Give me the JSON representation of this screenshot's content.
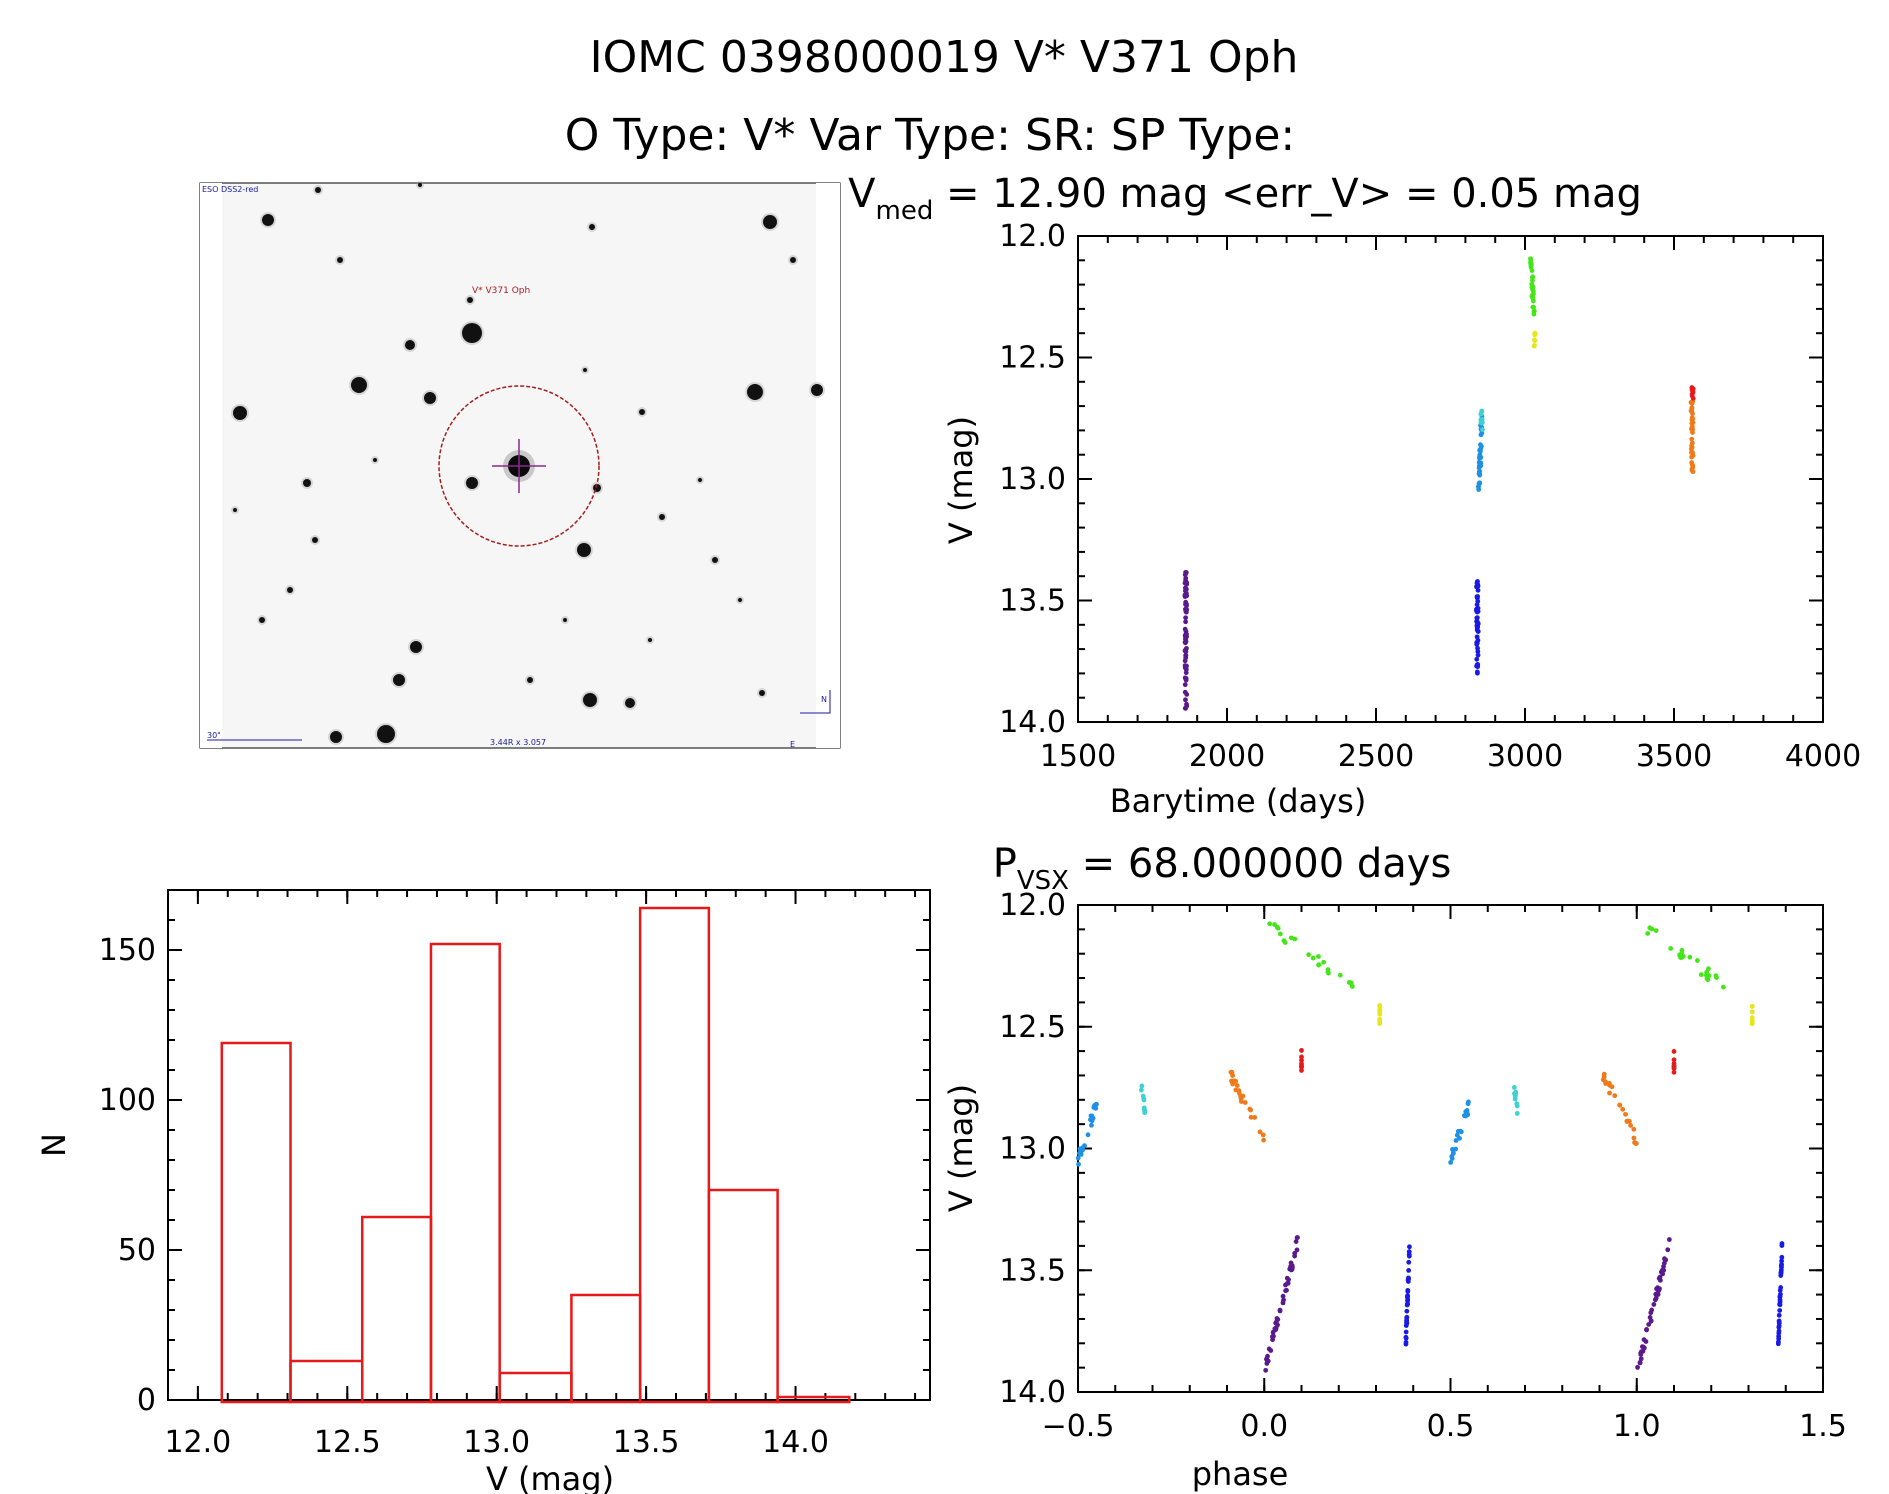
{
  "header": {
    "title": "IOMC 0398000019   V* V371 Oph",
    "subtitle": "O Type: V*  Var Type: SR:  SP Type:"
  },
  "finder": {
    "survey_label": "ESO DSS2-red",
    "target_label": "V* V371 Oph",
    "scale_label": "30\"",
    "fov_label": "3.44R x 3.057",
    "north_label": "N",
    "east_label": "E"
  },
  "chart_data": [
    {
      "id": "light_curve",
      "type": "scatter",
      "title_main": "V",
      "title_sub": "med",
      "title_rest": " = 12.90 mag <err_V> = 0.05 mag",
      "xlabel": "Barytime (days)",
      "ylabel": "V (mag)",
      "xlim": [
        1500,
        4000
      ],
      "ylim": [
        14.0,
        12.0
      ],
      "xticks": [
        "1500",
        "2000",
        "2500",
        "3000",
        "3500",
        "4000"
      ],
      "yticks": [
        "12.0",
        "12.5",
        "13.0",
        "13.5",
        "14.0"
      ],
      "series": [
        {
          "color": "#5a1a8c",
          "x": [
            1862,
            1862
          ],
          "y": [
            13.38,
            13.97
          ]
        },
        {
          "color": "#1a1ae6",
          "x": [
            2840,
            2840
          ],
          "y": [
            13.41,
            13.81
          ]
        },
        {
          "color": "#1e90e6",
          "x": [
            2845,
            2855
          ],
          "y": [
            13.06,
            12.73
          ]
        },
        {
          "color": "#3ed1d1",
          "x": [
            2855,
            2855
          ],
          "y": [
            12.72,
            12.8
          ]
        },
        {
          "color": "#44e61a",
          "x": [
            3020,
            3030
          ],
          "y": [
            12.09,
            12.35
          ]
        },
        {
          "color": "#e6e61a",
          "x": [
            3033,
            3033
          ],
          "y": [
            12.4,
            12.47
          ]
        },
        {
          "color": "#f07a1a",
          "x": [
            3560,
            3562
          ],
          "y": [
            12.68,
            12.98
          ]
        },
        {
          "color": "#e61a1a",
          "x": [
            3562,
            3562
          ],
          "y": [
            12.61,
            12.67
          ]
        }
      ]
    },
    {
      "id": "histogram",
      "type": "bar",
      "xlabel": "V (mag)",
      "ylabel": "N",
      "xlim": [
        11.9,
        14.45
      ],
      "ylim": [
        0,
        170
      ],
      "xticks": [
        "12.0",
        "12.5",
        "13.0",
        "13.5",
        "14.0"
      ],
      "yticks": [
        "0",
        "50",
        "100",
        "150"
      ],
      "bar_color": "#e61a1a",
      "bin_edges": [
        12.08,
        12.31,
        12.55,
        12.78,
        13.01,
        13.25,
        13.48,
        13.71,
        13.94,
        14.18
      ],
      "values": [
        119,
        13,
        61,
        152,
        9,
        35,
        164,
        70,
        1
      ]
    },
    {
      "id": "phased",
      "type": "scatter",
      "title_main": "P",
      "title_sub": "VSX",
      "title_rest": " = 68.000000 days",
      "xlabel": "phase",
      "ylabel": "V (mag)",
      "xlim": [
        -0.5,
        1.5
      ],
      "ylim": [
        14.0,
        12.0
      ],
      "xticks": [
        "−0.5",
        "0.0",
        "0.5",
        "1.0",
        "1.5"
      ],
      "yticks": [
        "12.0",
        "12.5",
        "13.0",
        "13.5",
        "14.0"
      ],
      "series": [
        {
          "color": "#5a1a8c",
          "x": [
            0.0,
            0.09
          ],
          "y": [
            13.92,
            13.38
          ]
        },
        {
          "color": "#1a1ae6",
          "x": [
            0.38,
            0.39
          ],
          "y": [
            13.8,
            13.41
          ]
        },
        {
          "color": "#1e90e6",
          "x": [
            -0.5,
            -0.45
          ],
          "y": [
            13.05,
            12.82
          ]
        },
        {
          "color": "#3ed1d1",
          "x": [
            -0.33,
            -0.32
          ],
          "y": [
            12.74,
            12.85
          ]
        },
        {
          "color": "#44e61a",
          "x": [
            0.01,
            0.24
          ],
          "y": [
            12.08,
            12.34
          ]
        },
        {
          "color": "#e6e61a",
          "x": [
            0.31,
            0.31
          ],
          "y": [
            12.42,
            12.48
          ]
        },
        {
          "color": "#f07a1a",
          "x": [
            -0.09,
            0.0
          ],
          "y": [
            12.7,
            12.97
          ]
        },
        {
          "color": "#e61a1a",
          "x": [
            0.1,
            0.1
          ],
          "y": [
            12.62,
            12.68
          ]
        }
      ]
    }
  ]
}
